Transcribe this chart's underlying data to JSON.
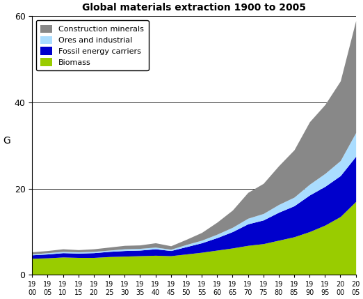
{
  "title": "Global materials extraction 1900 to 2005",
  "ylabel": "G",
  "years": [
    1900,
    1905,
    1910,
    1915,
    1920,
    1925,
    1930,
    1935,
    1940,
    1945,
    1950,
    1955,
    1960,
    1965,
    1970,
    1975,
    1980,
    1985,
    1990,
    1995,
    2000,
    2005
  ],
  "xtick_labels": [
    "19\n00",
    "19\n05",
    "19\n10",
    "19\n15",
    "19\n20",
    "19\n25",
    "19\n30",
    "19\n35",
    "19\n40",
    "19\n45",
    "19\n50",
    "19\n55",
    "19\n60",
    "19\n65",
    "19\n70",
    "19\n75",
    "19\n80",
    "19\n85",
    "19\n90",
    "19\n95",
    "20\n00",
    "20\n05"
  ],
  "biomass": [
    3.8,
    3.9,
    4.1,
    4.0,
    4.0,
    4.2,
    4.3,
    4.4,
    4.5,
    4.4,
    4.8,
    5.2,
    5.7,
    6.2,
    6.8,
    7.2,
    8.0,
    8.8,
    10.0,
    11.5,
    13.5,
    17.0
  ],
  "fossil_energy": [
    0.8,
    0.9,
    1.0,
    1.0,
    1.1,
    1.2,
    1.3,
    1.3,
    1.5,
    1.2,
    1.7,
    2.2,
    2.9,
    3.8,
    5.0,
    5.5,
    6.5,
    7.2,
    8.5,
    9.0,
    9.5,
    10.5
  ],
  "ores_industrial": [
    0.2,
    0.3,
    0.3,
    0.3,
    0.3,
    0.3,
    0.4,
    0.4,
    0.4,
    0.3,
    0.5,
    0.6,
    0.8,
    1.0,
    1.3,
    1.5,
    1.8,
    2.0,
    2.5,
    3.0,
    3.5,
    5.5
  ],
  "construction_minerals": [
    0.5,
    0.5,
    0.6,
    0.5,
    0.6,
    0.7,
    0.8,
    0.8,
    1.0,
    0.8,
    1.2,
    1.8,
    2.8,
    4.0,
    6.0,
    7.0,
    9.0,
    11.0,
    14.5,
    16.0,
    18.5,
    26.0
  ],
  "colors": {
    "biomass": "#99cc00",
    "fossil_energy": "#0000cc",
    "ores_industrial": "#aaddff",
    "construction_minerals": "#888888"
  },
  "legend_labels": [
    "Construction minerals",
    "Ores and industrial",
    "Fossil energy carriers",
    "Biomass"
  ],
  "ylim": [
    0,
    60
  ],
  "yticks": [
    0,
    20,
    40,
    60
  ],
  "background_color": "#ffffff",
  "plot_bg_color": "#ffffff"
}
